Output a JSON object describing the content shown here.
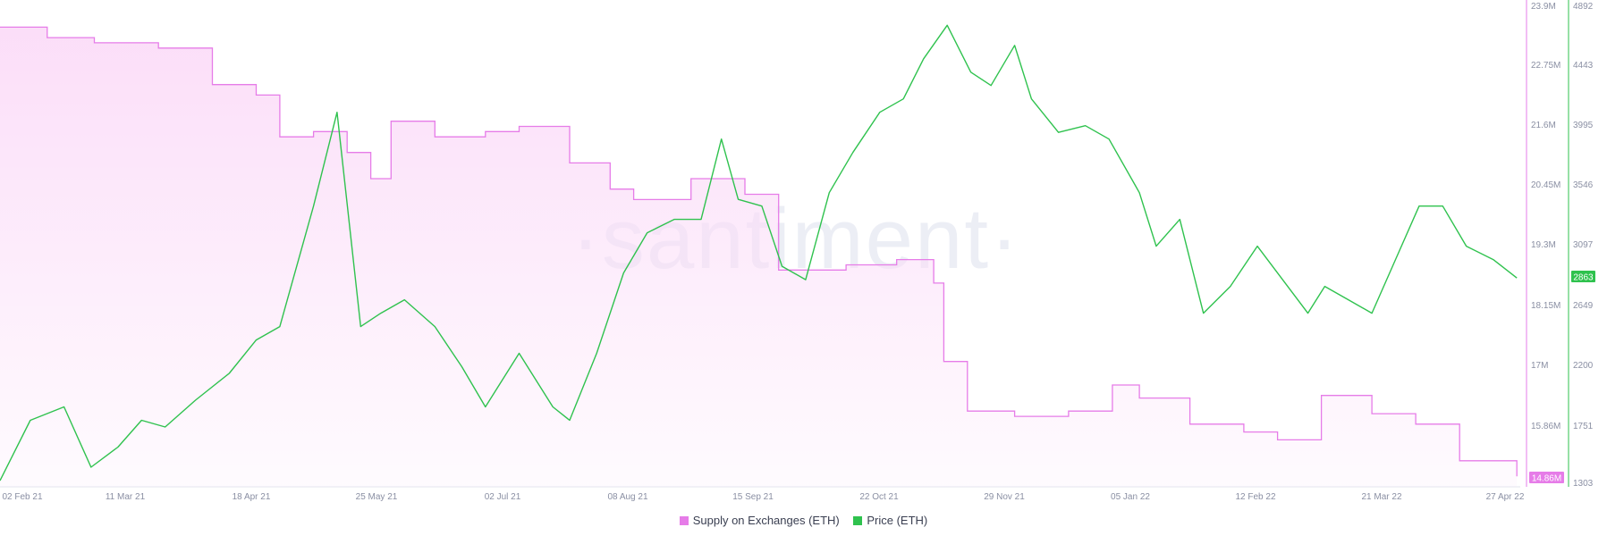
{
  "chart_data": {
    "type": "line",
    "watermark": "·santiment·",
    "x_ticks": [
      "02 Feb 21",
      "11 Mar 21",
      "18 Apr 21",
      "25 May 21",
      "02 Jul 21",
      "08 Aug 21",
      "15 Sep 21",
      "22 Oct 21",
      "29 Nov 21",
      "05 Jan 22",
      "12 Feb 22",
      "21 Mar 22",
      "27 Apr 22"
    ],
    "y_left_ticks": [
      "23.9M",
      "22.75M",
      "21.6M",
      "20.45M",
      "19.3M",
      "18.15M",
      "17M",
      "15.86M",
      "14.86M"
    ],
    "y_right_ticks": [
      "4892",
      "4443",
      "3995",
      "3546",
      "3097",
      "2649",
      "2200",
      "1751",
      "1303"
    ],
    "ylim_supply": [
      14.7,
      23.9
    ],
    "ylim_price": [
      1303,
      4892
    ],
    "last_supply_label": "14.86M",
    "last_price_label": "2863",
    "colors": {
      "supply": "#e67ce8",
      "price": "#2fc24e",
      "supply_fill": "#fbdcf8"
    },
    "series": [
      {
        "name": "Supply on Exchanges (ETH)",
        "x": [
          "2021-02-01",
          "2021-02-15",
          "2021-03-01",
          "2021-03-20",
          "2021-04-05",
          "2021-04-18",
          "2021-04-25",
          "2021-05-05",
          "2021-05-15",
          "2021-05-22",
          "2021-05-28",
          "2021-06-10",
          "2021-06-25",
          "2021-07-05",
          "2021-07-20",
          "2021-08-01",
          "2021-08-08",
          "2021-08-25",
          "2021-09-10",
          "2021-09-20",
          "2021-10-10",
          "2021-10-25",
          "2021-11-05",
          "2021-11-08",
          "2021-11-15",
          "2021-11-29",
          "2021-12-15",
          "2021-12-28",
          "2022-01-05",
          "2022-01-20",
          "2022-02-05",
          "2022-02-15",
          "2022-02-28",
          "2022-03-15",
          "2022-03-28",
          "2022-04-10",
          "2022-04-27"
        ],
        "values": [
          23.5,
          23.3,
          23.2,
          23.1,
          22.4,
          22.2,
          21.4,
          21.5,
          21.1,
          20.6,
          21.7,
          21.4,
          21.5,
          21.6,
          20.9,
          20.4,
          20.2,
          20.6,
          20.3,
          18.85,
          18.95,
          19.05,
          18.6,
          17.1,
          16.15,
          16.05,
          16.15,
          16.65,
          16.4,
          15.9,
          15.75,
          15.6,
          16.45,
          16.1,
          15.9,
          15.2,
          14.9
        ]
      },
      {
        "name": "Price (ETH)",
        "x": [
          "2021-02-01",
          "2021-02-10",
          "2021-02-20",
          "2021-02-28",
          "2021-03-08",
          "2021-03-15",
          "2021-03-22",
          "2021-03-31",
          "2021-04-10",
          "2021-04-18",
          "2021-04-25",
          "2021-05-05",
          "2021-05-12",
          "2021-05-19",
          "2021-05-25",
          "2021-06-01",
          "2021-06-10",
          "2021-06-18",
          "2021-06-25",
          "2021-07-05",
          "2021-07-15",
          "2021-07-20",
          "2021-07-28",
          "2021-08-05",
          "2021-08-12",
          "2021-08-20",
          "2021-08-28",
          "2021-09-03",
          "2021-09-08",
          "2021-09-15",
          "2021-09-21",
          "2021-09-28",
          "2021-10-05",
          "2021-10-12",
          "2021-10-20",
          "2021-10-27",
          "2021-11-02",
          "2021-11-09",
          "2021-11-16",
          "2021-11-22",
          "2021-11-29",
          "2021-12-04",
          "2021-12-12",
          "2021-12-20",
          "2021-12-27",
          "2022-01-05",
          "2022-01-10",
          "2022-01-17",
          "2022-01-24",
          "2022-02-01",
          "2022-02-09",
          "2022-02-15",
          "2022-02-24",
          "2022-03-01",
          "2022-03-08",
          "2022-03-15",
          "2022-03-22",
          "2022-03-29",
          "2022-04-05",
          "2022-04-12",
          "2022-04-20",
          "2022-04-27"
        ],
        "values": [
          1350,
          1800,
          1900,
          1450,
          1600,
          1800,
          1750,
          1950,
          2150,
          2400,
          2500,
          3400,
          4100,
          2500,
          2600,
          2700,
          2500,
          2200,
          1900,
          2300,
          1900,
          1800,
          2300,
          2900,
          3200,
          3300,
          3300,
          3900,
          3450,
          3400,
          2950,
          2850,
          3500,
          3800,
          4100,
          4200,
          4500,
          4750,
          4400,
          4300,
          4600,
          4200,
          3950,
          4000,
          3900,
          3500,
          3100,
          3300,
          2600,
          2800,
          3100,
          2900,
          2600,
          2800,
          2700,
          2600,
          3000,
          3400,
          3400,
          3100,
          3000,
          2863
        ]
      }
    ]
  }
}
